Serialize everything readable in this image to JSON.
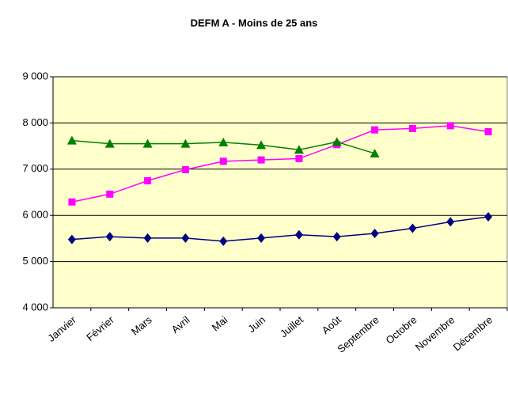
{
  "chart_data": {
    "type": "line",
    "title": "DEFM A - Moins de 25 ans",
    "categories": [
      "Janvier",
      "Février",
      "Mars",
      "Avril",
      "Mai",
      "Juin",
      "Juillet",
      "Août",
      "Septembre",
      "Octobre",
      "Novembre",
      "Décembre"
    ],
    "series": [
      {
        "color": "#000080",
        "marker": "diamond",
        "values": [
          5480,
          5540,
          5510,
          5510,
          5440,
          5510,
          5580,
          5540,
          5610,
          5720,
          5860,
          5970
        ]
      },
      {
        "color": "#ff00ff",
        "marker": "square",
        "values": [
          6290,
          6460,
          6750,
          6990,
          7170,
          7200,
          7230,
          7530,
          7850,
          7880,
          7940,
          7810
        ]
      },
      {
        "color": "#008000",
        "marker": "triangle",
        "values": [
          7620,
          7550,
          7550,
          7550,
          7580,
          7520,
          7420,
          7590,
          7340,
          null,
          null,
          null
        ]
      }
    ],
    "ylim": [
      4000,
      9000
    ],
    "yticks": [
      {
        "value": 4000,
        "label": "4 000"
      },
      {
        "value": 5000,
        "label": "5 000"
      },
      {
        "value": 6000,
        "label": "6 000"
      },
      {
        "value": 7000,
        "label": "7 000"
      },
      {
        "value": 8000,
        "label": "8 000"
      },
      {
        "value": 9000,
        "label": "9 000"
      }
    ],
    "grid": true,
    "background": "#ffffcc"
  }
}
